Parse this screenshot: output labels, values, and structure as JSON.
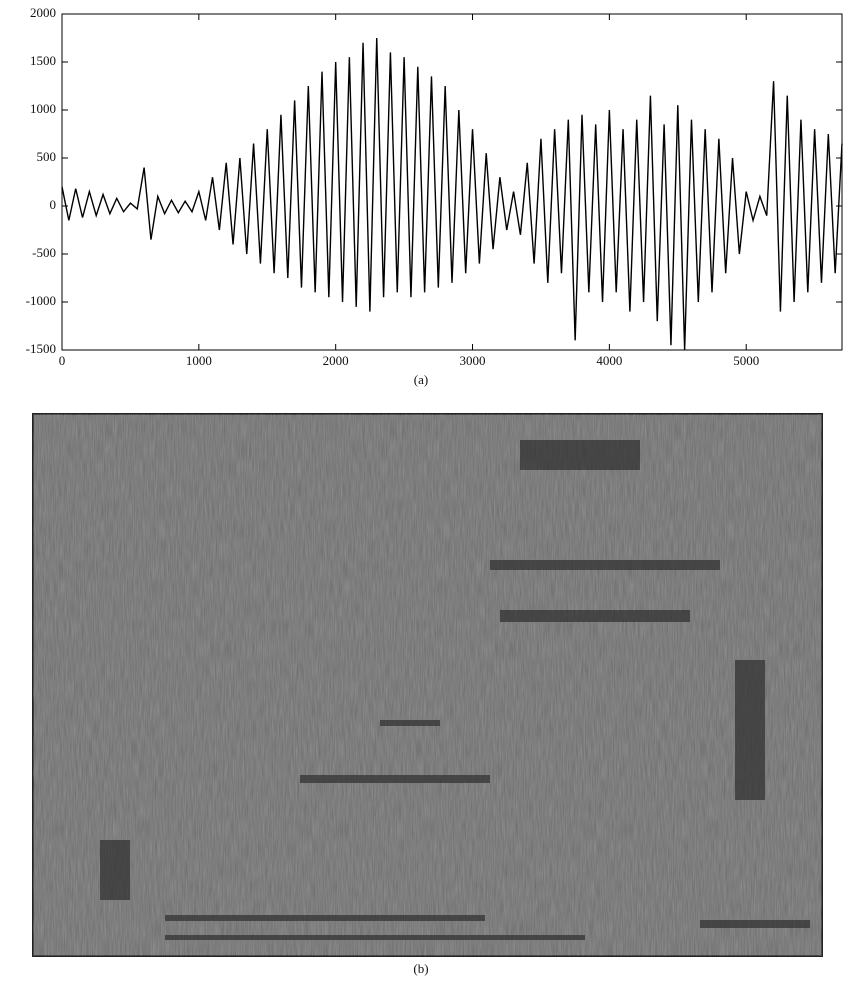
{
  "chart_data": [
    {
      "type": "line",
      "x": [
        0,
        50,
        100,
        150,
        200,
        250,
        300,
        350,
        400,
        450,
        500,
        550,
        600,
        650,
        700,
        750,
        800,
        850,
        900,
        950,
        1000,
        1050,
        1100,
        1150,
        1200,
        1250,
        1300,
        1350,
        1400,
        1450,
        1500,
        1550,
        1600,
        1650,
        1700,
        1750,
        1800,
        1850,
        1900,
        1950,
        2000,
        2050,
        2100,
        2150,
        2200,
        2250,
        2300,
        2350,
        2400,
        2450,
        2500,
        2550,
        2600,
        2650,
        2700,
        2750,
        2800,
        2850,
        2900,
        2950,
        3000,
        3050,
        3100,
        3150,
        3200,
        3250,
        3300,
        3350,
        3400,
        3450,
        3500,
        3550,
        3600,
        3650,
        3700,
        3750,
        3800,
        3850,
        3900,
        3950,
        4000,
        4050,
        4100,
        4150,
        4200,
        4250,
        4300,
        4350,
        4400,
        4450,
        4500,
        4550,
        4600,
        4650,
        4700,
        4750,
        4800,
        4850,
        4900,
        4950,
        5000,
        5050,
        5100,
        5150,
        5200,
        5250,
        5300,
        5350,
        5400,
        5450,
        5500,
        5550,
        5600,
        5650,
        5700
      ],
      "values": [
        200,
        -150,
        180,
        -120,
        150,
        -100,
        120,
        -80,
        80,
        -60,
        30,
        -30,
        400,
        -350,
        100,
        -80,
        60,
        -70,
        50,
        -60,
        150,
        -150,
        300,
        -250,
        450,
        -400,
        500,
        -500,
        650,
        -600,
        800,
        -700,
        950,
        -750,
        1100,
        -850,
        1250,
        -900,
        1400,
        -950,
        1500,
        -1000,
        1550,
        -1050,
        1700,
        -1100,
        1750,
        -950,
        1600,
        -900,
        1550,
        -950,
        1450,
        -900,
        1350,
        -850,
        1250,
        -800,
        1000,
        -700,
        800,
        -600,
        550,
        -450,
        300,
        -250,
        150,
        -300,
        450,
        -600,
        700,
        -800,
        800,
        -700,
        900,
        -1400,
        950,
        -900,
        850,
        -1000,
        1000,
        -900,
        800,
        -1100,
        900,
        -1000,
        1150,
        -1200,
        850,
        -1450,
        1050,
        -1500,
        900,
        -1000,
        800,
        -900,
        700,
        -700,
        500,
        -500,
        150,
        -150,
        100,
        -100,
        1300,
        -1100,
        1150,
        -1000,
        900,
        -900,
        800,
        -800,
        750,
        -700,
        650
      ],
      "color": "#000000",
      "xlim": [
        0,
        5700
      ],
      "ylim": [
        -1500,
        2000
      ],
      "xticks": [
        0,
        1000,
        2000,
        3000,
        4000,
        5000
      ],
      "yticks": [
        -1500,
        -1000,
        -500,
        0,
        500,
        1000,
        1500,
        2000
      ],
      "caption": "(a)"
    },
    {
      "type": "image",
      "caption": "(b)"
    }
  ]
}
